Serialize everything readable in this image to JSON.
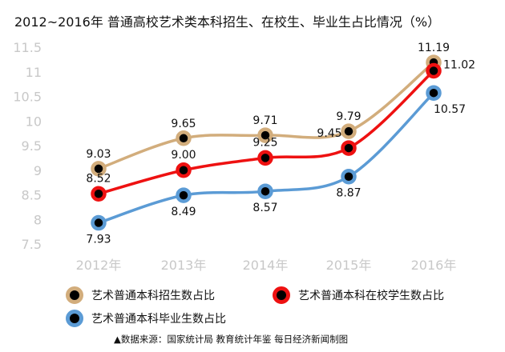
{
  "chart_data": {
    "type": "line",
    "title": "2012~2016年 普通高校艺术类本科招生、在校生、毕业生占比情况（%）",
    "categories": [
      "2012年",
      "2013年",
      "2014年",
      "2015年",
      "2016年"
    ],
    "ylim": [
      7.5,
      11.5
    ],
    "yticks": [
      "7.5",
      "8",
      "8.5",
      "9",
      "9.5",
      "10",
      "10.5",
      "11",
      "11.5"
    ],
    "grid": false,
    "legend_position": "bottom",
    "series": [
      {
        "name": "艺术普通本科招生数占比",
        "color": "#d2ad7c",
        "values": [
          9.03,
          9.65,
          9.71,
          9.79,
          11.19
        ],
        "labels": [
          "9.03",
          "9.65",
          "9.71",
          "9.79",
          "11.19"
        ]
      },
      {
        "name": "艺术普通本科在校学生数占比",
        "color": "#ee1111",
        "values": [
          8.52,
          9.0,
          9.25,
          9.45,
          11.02
        ],
        "labels": [
          "8.52",
          "9.00",
          "9.25",
          "9.45",
          "11.02"
        ]
      },
      {
        "name": "艺术普通本科毕业生数占比",
        "color": "#5b9bd5",
        "values": [
          7.93,
          8.49,
          8.57,
          8.87,
          10.57
        ],
        "labels": [
          "7.93",
          "8.49",
          "8.57",
          "8.87",
          "10.57"
        ]
      }
    ]
  },
  "source": "▲数据来源：国家统计局 教育统计年鉴 每日经济新闻制图"
}
